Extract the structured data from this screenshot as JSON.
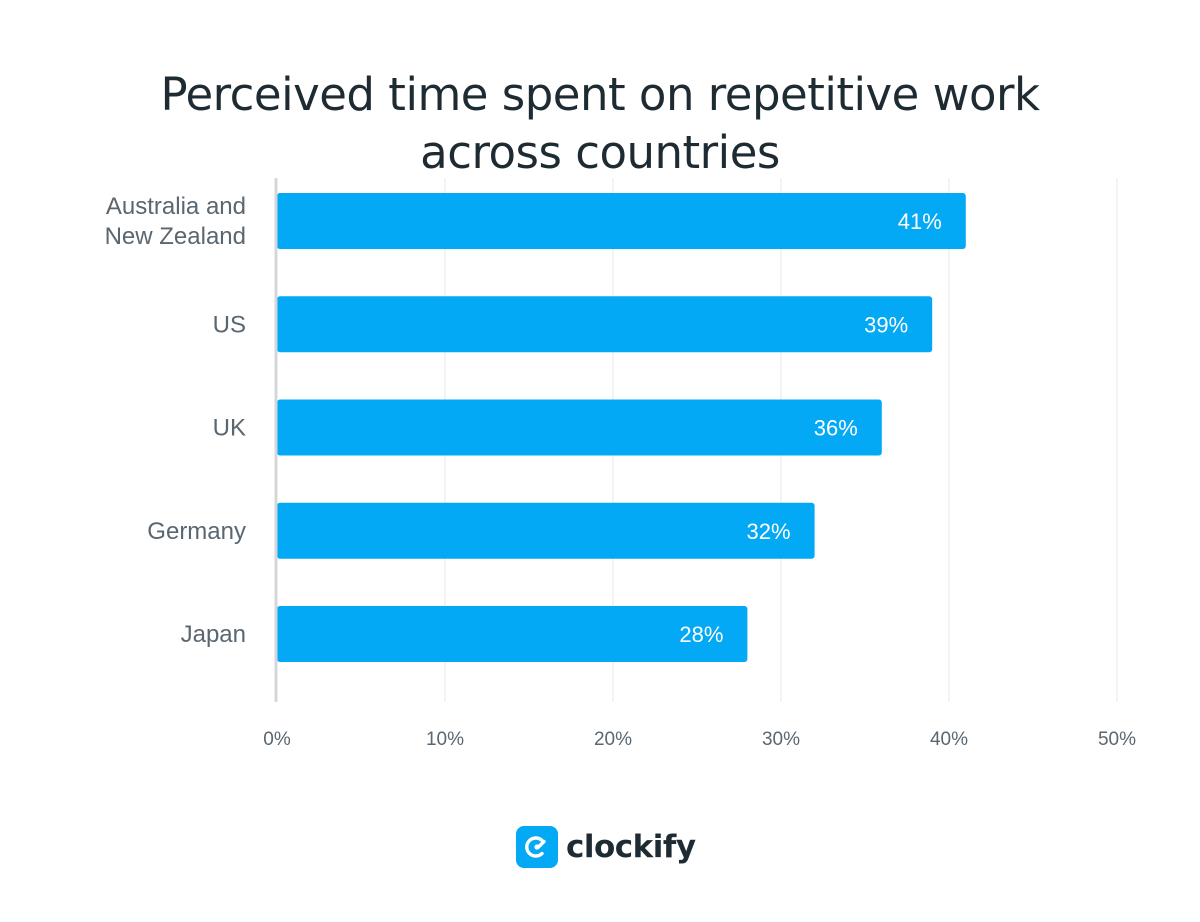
{
  "chart_data": {
    "type": "bar",
    "orientation": "horizontal",
    "title_lines": [
      "Perceived time spent on repetitive work",
      "across countries"
    ],
    "categories": [
      [
        "Australia and",
        "New Zealand"
      ],
      [
        "US"
      ],
      [
        "UK"
      ],
      [
        "Germany"
      ],
      [
        "Japan"
      ]
    ],
    "values": [
      41,
      39,
      36,
      32,
      28
    ],
    "value_labels": [
      "41%",
      "39%",
      "36%",
      "32%",
      "28%"
    ],
    "xlim": [
      0,
      50
    ],
    "xticks": [
      0,
      10,
      20,
      30,
      40,
      50
    ],
    "xtick_labels": [
      "0%",
      "10%",
      "20%",
      "30%",
      "40%",
      "50%"
    ],
    "bar_color": "#03a9f4",
    "grid": true,
    "xlabel": "",
    "ylabel": ""
  },
  "brand": {
    "name": "clockify",
    "icon": "clockify-logo-icon",
    "color": "#03a9f4"
  }
}
